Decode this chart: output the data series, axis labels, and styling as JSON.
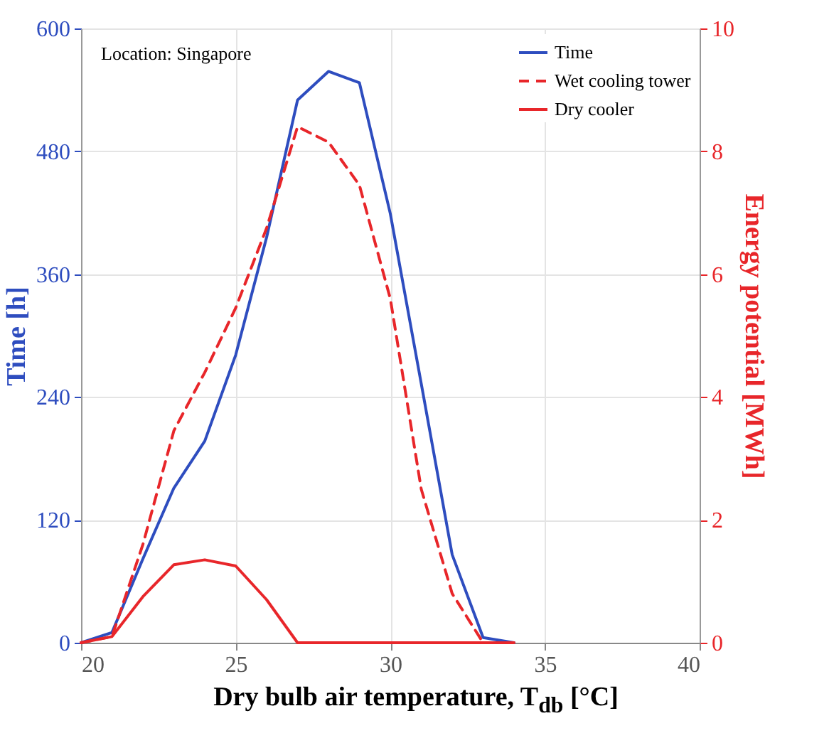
{
  "chart_data": {
    "type": "line",
    "xlabel": "Dry bulb air temperature, T$_{db}$ [°C]",
    "ylabel": "Time [h]",
    "y2label": "Energy potential [MWh]",
    "annotations": [
      "Location: Singapore"
    ],
    "xlim": [
      20,
      40
    ],
    "xticks": [
      20,
      25,
      30,
      35,
      40
    ],
    "ylim": [
      0,
      600
    ],
    "yticks": [
      0,
      120,
      240,
      360,
      480,
      600
    ],
    "y2lim": [
      0,
      10
    ],
    "y2ticks": [
      0,
      2,
      4,
      6,
      8,
      10
    ],
    "grid": true,
    "legend": "top right",
    "series": [
      {
        "name": "Time",
        "color": "#2e4dbf",
        "line_style": "solid",
        "x": [
          20,
          21,
          22,
          23,
          24,
          25,
          26,
          27,
          28,
          29,
          30,
          31,
          32,
          33,
          34
        ],
        "values": [
          0,
          10,
          82,
          151,
          197,
          281,
          396,
          530,
          558,
          547,
          419,
          253,
          86,
          5,
          0
        ]
      },
      {
        "name": "Wet cooling tower",
        "color": "#e8262a",
        "line_style": "dashed",
        "axis": "y2",
        "x": [
          20,
          21,
          22,
          23,
          24,
          25,
          26,
          27,
          28,
          29,
          30,
          31,
          32,
          33,
          34
        ],
        "values": [
          0,
          0.1,
          1.6,
          3.45,
          4.4,
          5.45,
          6.75,
          8.4,
          8.15,
          7.45,
          5.6,
          2.5,
          0.8,
          0,
          0
        ]
      },
      {
        "name": "Dry cooler",
        "color": "#e8262a",
        "line_style": "solid",
        "axis": "y2",
        "x": [
          20,
          21,
          22,
          23,
          24,
          25,
          26,
          27,
          28,
          29,
          30,
          31,
          32,
          33,
          34
        ],
        "values": [
          0,
          0.1,
          0.75,
          1.27,
          1.35,
          1.25,
          0.7,
          0,
          0,
          0,
          0,
          0,
          0,
          0,
          0
        ]
      }
    ]
  }
}
